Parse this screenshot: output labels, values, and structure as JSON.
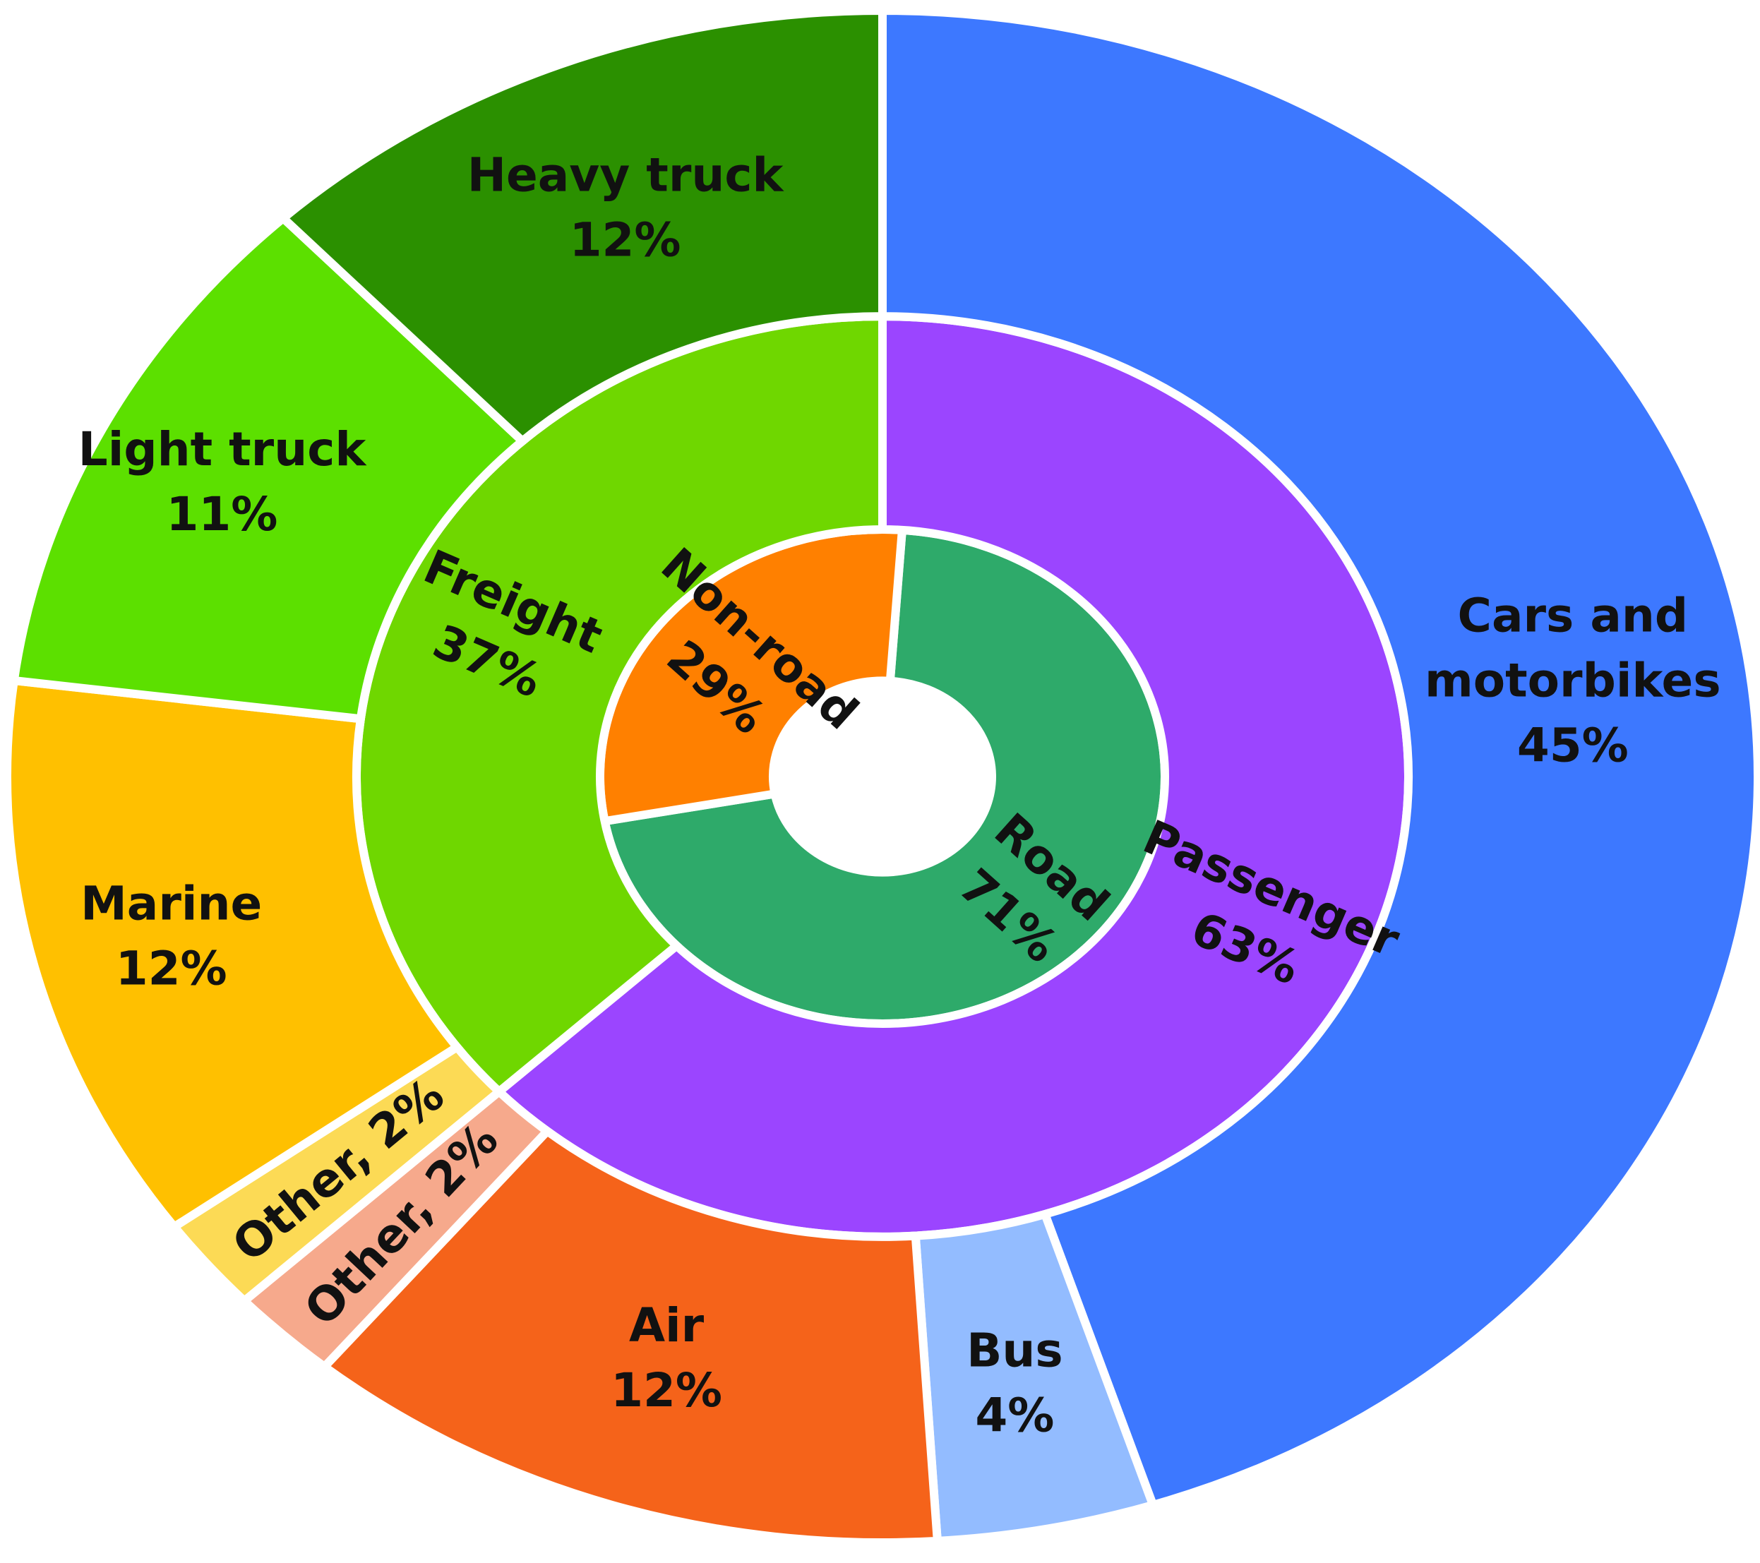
{
  "chart_data": {
    "type": "sunburst",
    "title": "",
    "unit": "%",
    "rings": [
      {
        "name": "inner",
        "slices": [
          {
            "label": "Road",
            "value": 71,
            "value_label": "71%",
            "color": "#2EAA6A",
            "text_lines": [
              "Road",
              "71%"
            ]
          },
          {
            "label": "Non-road",
            "value": 29,
            "value_label": "29%",
            "color": "#FF8000",
            "text_lines": [
              "Non-road",
              "29%"
            ]
          }
        ]
      },
      {
        "name": "middle",
        "slices": [
          {
            "label": "Passenger",
            "value": 63,
            "value_label": "63%",
            "color": "#9B45FF",
            "text_lines": [
              "Passenger",
              "63%"
            ]
          },
          {
            "label": "Freight",
            "value": 37,
            "value_label": "37%",
            "color": "#6FD700",
            "text_lines": [
              "Freight",
              "37%"
            ]
          }
        ]
      },
      {
        "name": "outer",
        "slices": [
          {
            "label": "Cars and motorbikes",
            "value": 45,
            "value_label": "45%",
            "color": "#3D78FF",
            "text_lines": [
              "Cars and",
              "motorbikes",
              "45%"
            ]
          },
          {
            "label": "Bus",
            "value": 4,
            "value_label": "4%",
            "color": "#93BCFF",
            "text_lines": [
              "Bus",
              "4%"
            ]
          },
          {
            "label": "Air",
            "value": 12,
            "value_label": "12%",
            "color": "#F5631A",
            "text_lines": [
              "Air",
              "12%"
            ]
          },
          {
            "label": "Other",
            "value": 2,
            "value_label": "2%",
            "color": "#F6A98C",
            "text_lines": [
              "Other, 2%"
            ]
          },
          {
            "label": "Other",
            "value": 2,
            "value_label": "2%",
            "color": "#FCDA55",
            "text_lines": [
              "Other, 2%"
            ]
          },
          {
            "label": "Marine",
            "value": 12,
            "value_label": "12%",
            "color": "#FFC000",
            "text_lines": [
              "Marine",
              "12%"
            ]
          },
          {
            "label": "Light truck",
            "value": 11,
            "value_label": "11%",
            "color": "#5CE000",
            "text_lines": [
              "Light truck",
              "11%"
            ]
          },
          {
            "label": "Heavy truck",
            "value": 12,
            "value_label": "12%",
            "color": "#2B9000",
            "text_lines": [
              "Heavy truck",
              "12%"
            ]
          }
        ]
      }
    ]
  }
}
